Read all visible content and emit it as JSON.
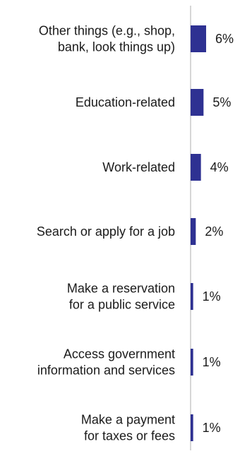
{
  "chart_data": {
    "type": "bar",
    "orientation": "horizontal",
    "categories": [
      [
        "Other things (e.g., shop,",
        "bank, look things up)"
      ],
      [
        "Education-related"
      ],
      [
        "Work-related"
      ],
      [
        "Search or apply for a job"
      ],
      [
        "Make a reservation",
        "for a public service"
      ],
      [
        "Access government",
        "information and services"
      ],
      [
        "Make a payment",
        "for taxes or fees"
      ]
    ],
    "values": [
      6,
      5,
      4,
      2,
      1,
      1,
      1
    ],
    "value_labels": [
      "6%",
      "5%",
      "4%",
      "2%",
      "1%",
      "1%",
      "1%"
    ],
    "unit": "%",
    "xlim": [
      0,
      100
    ],
    "bar_color": "#2e3192",
    "axis_color": "#c8c8c8",
    "grid": false,
    "legend": "none"
  }
}
